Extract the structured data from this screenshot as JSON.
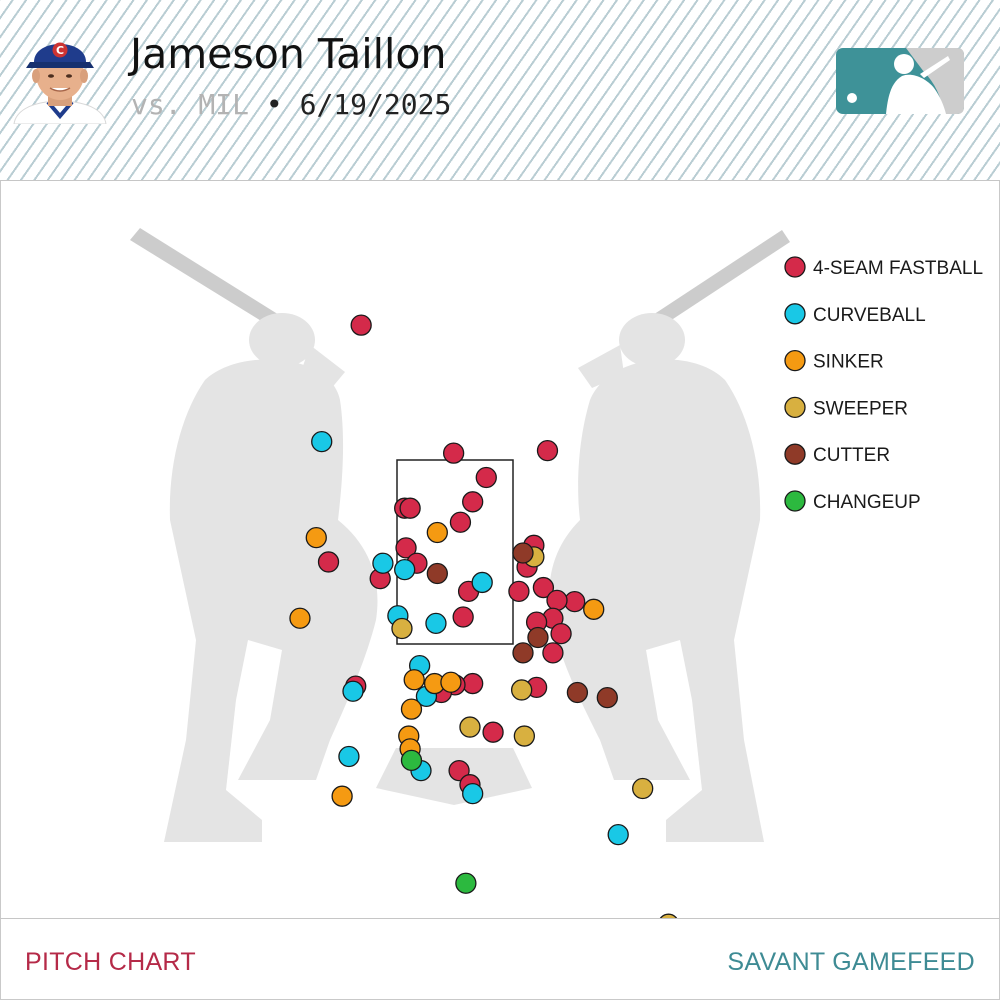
{
  "header": {
    "player_name": "Jameson Taillon",
    "opponent": "vs. MIL",
    "separator": "•",
    "date": "6/19/2025"
  },
  "footer": {
    "left_label": "PITCH CHART",
    "right_label": "SAVANT GAMEFEED"
  },
  "chart_data": {
    "type": "scatter",
    "title": "",
    "legend_position": "top-right",
    "strike_zone_drawn": true,
    "series": [
      {
        "name": "4-SEAM FASTBALL",
        "color": "#d42a4a",
        "points": [
          [
            -0.69,
            4.28
          ],
          [
            -0.01,
            3.28
          ],
          [
            0.68,
            3.3
          ],
          [
            0.23,
            3.09
          ],
          [
            -0.37,
            2.85
          ],
          [
            0.13,
            2.9
          ],
          [
            0.04,
            2.74
          ],
          [
            -0.33,
            2.85
          ],
          [
            0.58,
            2.56
          ],
          [
            -0.36,
            2.54
          ],
          [
            -0.28,
            2.42
          ],
          [
            0.53,
            2.39
          ],
          [
            0.88,
            2.12
          ],
          [
            0.65,
            2.23
          ],
          [
            -0.93,
            2.43
          ],
          [
            -0.55,
            2.3
          ],
          [
            0.75,
            2.13
          ],
          [
            0.1,
            2.2
          ],
          [
            0.47,
            2.2
          ],
          [
            0.72,
            1.99
          ],
          [
            0.6,
            1.96
          ],
          [
            0.78,
            1.87
          ],
          [
            0.06,
            2.0
          ],
          [
            0.72,
            1.72
          ],
          [
            0.6,
            1.45
          ],
          [
            -0.73,
            1.46
          ],
          [
            0.13,
            1.48
          ],
          [
            0.0,
            1.47
          ],
          [
            -0.1,
            1.41
          ],
          [
            0.28,
            1.1
          ],
          [
            0.03,
            0.8
          ],
          [
            0.11,
            0.69
          ]
        ]
      },
      {
        "name": "CURVEBALL",
        "color": "#19c8e6",
        "points": [
          [
            -0.98,
            3.37
          ],
          [
            -0.53,
            2.42
          ],
          [
            -0.37,
            2.37
          ],
          [
            0.2,
            2.27
          ],
          [
            -0.42,
            2.01
          ],
          [
            -0.14,
            1.95
          ],
          [
            -0.26,
            1.62
          ],
          [
            -0.75,
            1.42
          ],
          [
            -0.21,
            1.38
          ],
          [
            -0.78,
            0.91
          ],
          [
            -0.25,
            0.8
          ],
          [
            0.13,
            0.62
          ],
          [
            1.2,
            0.3
          ]
        ]
      },
      {
        "name": "SINKER",
        "color": "#f59a12",
        "points": [
          [
            -1.02,
            2.62
          ],
          [
            -0.13,
            2.66
          ],
          [
            -1.14,
            1.99
          ],
          [
            1.02,
            2.06
          ],
          [
            -0.3,
            1.51
          ],
          [
            -0.32,
            1.28
          ],
          [
            -0.15,
            1.48
          ],
          [
            -0.03,
            1.49
          ],
          [
            -0.34,
            1.07
          ],
          [
            -0.33,
            0.97
          ],
          [
            -0.83,
            0.6
          ]
        ]
      },
      {
        "name": "SWEEPER",
        "color": "#d8b040",
        "points": [
          [
            0.58,
            2.47
          ],
          [
            -0.39,
            1.91
          ],
          [
            0.49,
            1.43
          ],
          [
            0.11,
            1.14
          ],
          [
            0.51,
            1.07
          ],
          [
            1.38,
            0.66
          ],
          [
            1.57,
            -0.4
          ]
        ]
      },
      {
        "name": "CUTTER",
        "color": "#8f3a28",
        "points": [
          [
            0.5,
            2.5
          ],
          [
            -0.13,
            2.34
          ],
          [
            0.61,
            1.84
          ],
          [
            0.5,
            1.72
          ],
          [
            0.9,
            1.41
          ],
          [
            1.12,
            1.37
          ]
        ]
      },
      {
        "name": "CHANGEUP",
        "color": "#2cb93f",
        "points": [
          [
            -0.32,
            0.88
          ],
          [
            0.08,
            -0.08
          ]
        ]
      }
    ]
  }
}
